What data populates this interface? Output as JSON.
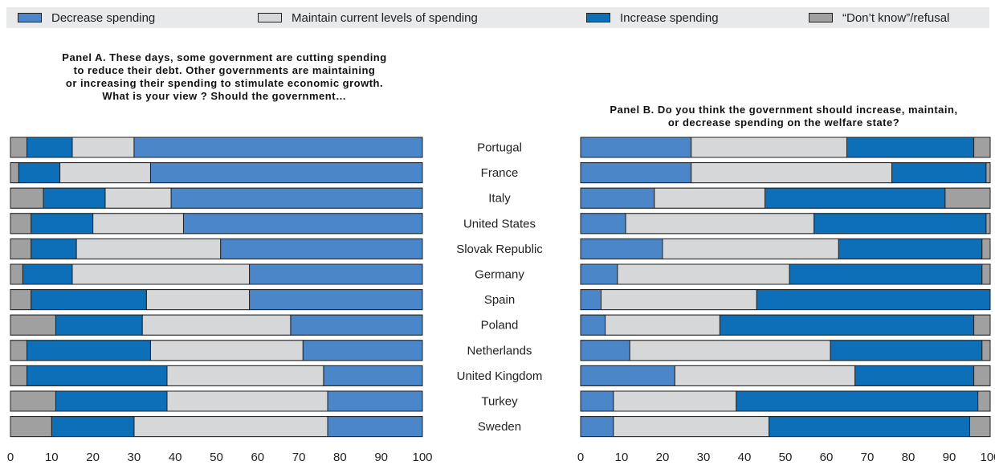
{
  "legend": [
    {
      "label": "Decrease spending",
      "color": "#4a86c8"
    },
    {
      "label": "Maintain current levels of spending",
      "color": "#d6d7d8"
    },
    {
      "label": "Increase spending",
      "color": "#0d6fb8"
    },
    {
      "label": "“Don’t know”/refusal",
      "color": "#a0a0a0"
    }
  ],
  "panel_a_title": [
    "Panel A. These days, some government are cutting spending",
    "to reduce their debt. Other governments are maintaining",
    "or increasing their spending to stimulate economic growth.",
    "What is your view ? Should the government…"
  ],
  "panel_b_title": [
    "Panel B. Do you think the government should increase, maintain,",
    "or decrease spending on the welfare state?"
  ],
  "chart_data": [
    {
      "type": "bar",
      "orientation": "horizontal-stacked",
      "axis": "reversed",
      "xlim": [
        0,
        100
      ],
      "ticks": [
        "100",
        "90",
        "80",
        "70",
        "60",
        "50",
        "40",
        "30",
        "20",
        "10",
        "0"
      ],
      "categories": [
        "Portugal",
        "France",
        "Italy",
        "United States",
        "Slovak Republic",
        "Germany",
        "Spain",
        "Poland",
        "Netherlands",
        "United Kingdom",
        "Turkey",
        "Sweden"
      ],
      "series": [
        {
          "name": "Decrease spending",
          "values": [
            70,
            66,
            61,
            58,
            49,
            42,
            42,
            32,
            29,
            24,
            23,
            23
          ]
        },
        {
          "name": "Maintain current levels of spending",
          "values": [
            15,
            22,
            16,
            22,
            35,
            43,
            25,
            36,
            37,
            38,
            39,
            47
          ]
        },
        {
          "name": "Increase spending",
          "values": [
            11,
            10,
            15,
            15,
            11,
            12,
            28,
            21,
            30,
            34,
            27,
            20
          ]
        },
        {
          "name": "“Don’t know”/refusal",
          "values": [
            4,
            2,
            8,
            5,
            5,
            3,
            5,
            11,
            4,
            4,
            11,
            10
          ]
        }
      ]
    },
    {
      "type": "bar",
      "orientation": "horizontal-stacked",
      "xlim": [
        0,
        100
      ],
      "ticks": [
        "0",
        "10",
        "20",
        "30",
        "40",
        "50",
        "60",
        "70",
        "80",
        "90",
        "100"
      ],
      "categories": [
        "Portugal",
        "France",
        "Italy",
        "United States",
        "Slovak Republic",
        "Germany",
        "Spain",
        "Poland",
        "Netherlands",
        "United Kingdom",
        "Turkey",
        "Sweden"
      ],
      "series": [
        {
          "name": "Decrease spending",
          "values": [
            27,
            27,
            18,
            11,
            20,
            9,
            5,
            6,
            12,
            23,
            8,
            8
          ]
        },
        {
          "name": "Maintain current levels of spending",
          "values": [
            38,
            49,
            27,
            46,
            43,
            42,
            38,
            28,
            49,
            44,
            30,
            38
          ]
        },
        {
          "name": "Increase spending",
          "values": [
            31,
            23,
            44,
            42,
            35,
            47,
            57,
            62,
            37,
            29,
            59,
            49
          ]
        },
        {
          "name": "“Don’t know”/refusal",
          "values": [
            4,
            1,
            11,
            1,
            2,
            2,
            0,
            4,
            2,
            4,
            3,
            5
          ]
        }
      ]
    }
  ]
}
